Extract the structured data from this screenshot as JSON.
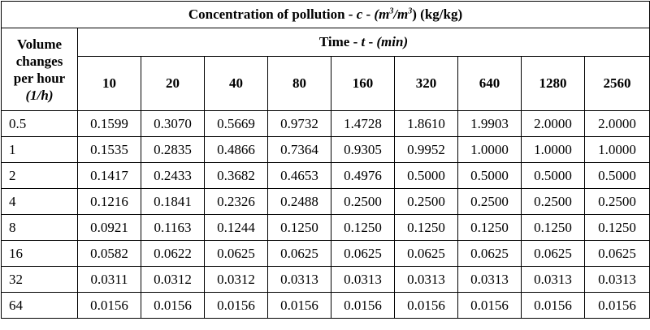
{
  "title": {
    "prefix": "Concentration of pollution - ",
    "symbol": "c",
    "sep": " - ",
    "unit_open": "(m",
    "sup1": "3",
    "unit_mid": "/m",
    "sup2": "3",
    "unit_close": ") (kg/kg)"
  },
  "row_header": {
    "line1": "Volume",
    "line2": "changes",
    "line3": "per hour",
    "unit": "(1/h)"
  },
  "time_header": {
    "prefix": "Time - ",
    "symbol": "t",
    "sep": " - ",
    "unit": "(min)"
  },
  "time_values": [
    "10",
    "20",
    "40",
    "80",
    "160",
    "320",
    "640",
    "1280",
    "2560"
  ],
  "rows": [
    {
      "label": "0.5",
      "values": [
        "0.1599",
        "0.3070",
        "0.5669",
        "0.9732",
        "1.4728",
        "1.8610",
        "1.9903",
        "2.0000",
        "2.0000"
      ]
    },
    {
      "label": "1",
      "values": [
        "0.1535",
        "0.2835",
        "0.4866",
        "0.7364",
        "0.9305",
        "0.9952",
        "1.0000",
        "1.0000",
        "1.0000"
      ]
    },
    {
      "label": "2",
      "values": [
        "0.1417",
        "0.2433",
        "0.3682",
        "0.4653",
        "0.4976",
        "0.5000",
        "0.5000",
        "0.5000",
        "0.5000"
      ]
    },
    {
      "label": "4",
      "values": [
        "0.1216",
        "0.1841",
        "0.2326",
        "0.2488",
        "0.2500",
        "0.2500",
        "0.2500",
        "0.2500",
        "0.2500"
      ]
    },
    {
      "label": "8",
      "values": [
        "0.0921",
        "0.1163",
        "0.1244",
        "0.1250",
        "0.1250",
        "0.1250",
        "0.1250",
        "0.1250",
        "0.1250"
      ]
    },
    {
      "label": "16",
      "values": [
        "0.0582",
        "0.0622",
        "0.0625",
        "0.0625",
        "0.0625",
        "0.0625",
        "0.0625",
        "0.0625",
        "0.0625"
      ]
    },
    {
      "label": "32",
      "values": [
        "0.0311",
        "0.0312",
        "0.0312",
        "0.0313",
        "0.0313",
        "0.0313",
        "0.0313",
        "0.0313",
        "0.0313"
      ]
    },
    {
      "label": "64",
      "values": [
        "0.0156",
        "0.0156",
        "0.0156",
        "0.0156",
        "0.0156",
        "0.0156",
        "0.0156",
        "0.0156",
        "0.0156"
      ]
    }
  ]
}
